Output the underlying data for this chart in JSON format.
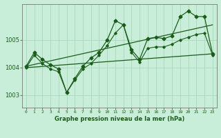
{
  "background_color": "#c8edd8",
  "grid_color": "#a8d8b8",
  "line_color": "#1a5c1a",
  "title": "Graphe pression niveau de la mer (hPa)",
  "xlim": [
    -0.5,
    23.5
  ],
  "ylim": [
    1002.55,
    1006.3
  ],
  "yticks": [
    1003,
    1004,
    1005
  ],
  "xticks": [
    0,
    1,
    2,
    3,
    4,
    5,
    6,
    7,
    8,
    9,
    10,
    11,
    12,
    13,
    14,
    15,
    16,
    17,
    18,
    19,
    20,
    21,
    22,
    23
  ],
  "series_main": [
    1004.05,
    1004.55,
    1004.3,
    1004.1,
    1003.95,
    1003.1,
    1003.6,
    1004.05,
    1004.35,
    1004.55,
    1005.0,
    1005.7,
    1005.55,
    1004.65,
    1004.3,
    1005.05,
    1005.1,
    1005.05,
    1005.15,
    1005.85,
    1006.05,
    1005.85,
    1005.85,
    1004.5
  ],
  "series_mid": [
    1004.0,
    1004.45,
    1004.15,
    1003.95,
    1003.85,
    1003.1,
    1003.55,
    1003.95,
    1004.15,
    1004.45,
    1004.8,
    1005.25,
    1005.55,
    1004.55,
    1004.2,
    1004.7,
    1004.75,
    1004.75,
    1004.85,
    1005.0,
    1005.1,
    1005.2,
    1005.25,
    1004.45
  ],
  "trend1_x": [
    0,
    23
  ],
  "trend1_y": [
    1004.05,
    1005.55
  ],
  "trend2_x": [
    0,
    23
  ],
  "trend2_y": [
    1004.0,
    1004.5
  ]
}
